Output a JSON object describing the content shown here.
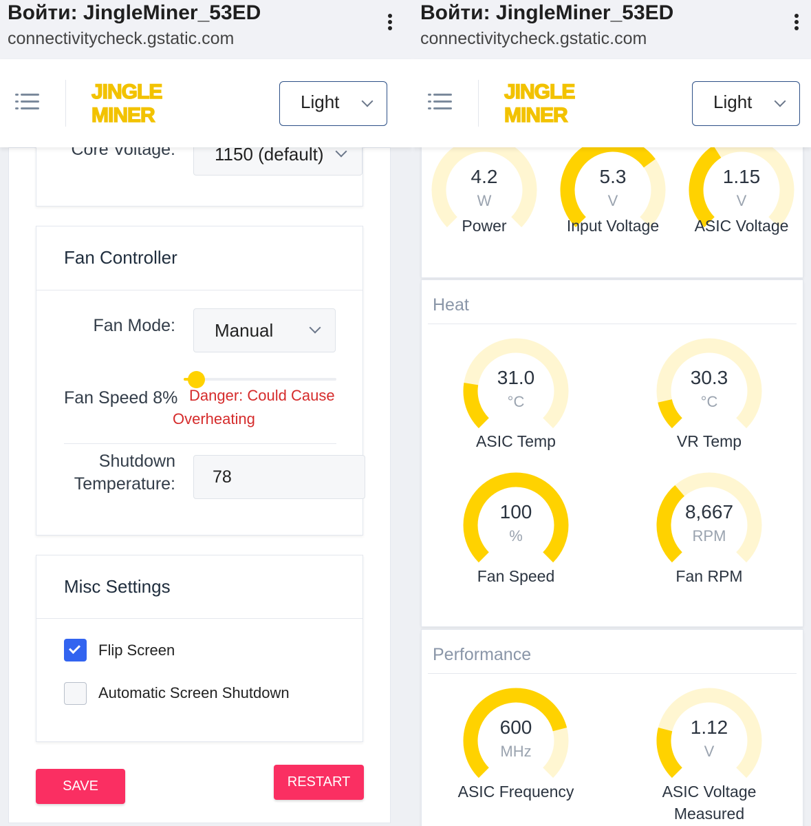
{
  "browser": {
    "title": "Войти: JingleMiner_53ED",
    "url": "connectivitycheck.gstatic.com"
  },
  "nav": {
    "logo_line1": "JINGLE",
    "logo_line2": "MINER",
    "theme_value": "Light"
  },
  "settings": {
    "core_voltage_label": "Core Voltage:",
    "core_voltage_value": "1150 (default)",
    "fan_card_title": "Fan Controller",
    "fan_mode_label": "Fan Mode:",
    "fan_mode_value": "Manual",
    "fan_speed_label": "Fan Speed 8%",
    "fan_speed_percent": 8,
    "danger_line1": "Danger: Could Cause",
    "danger_line2": "Overheating",
    "shutdown_label_line1": "Shutdown",
    "shutdown_label_line2": "Temperature:",
    "shutdown_value": "78",
    "misc_card_title": "Misc Settings",
    "flip_screen_label": "Flip Screen",
    "flip_screen_checked": true,
    "auto_shutdown_label": "Automatic Screen Shutdown",
    "auto_shutdown_checked": false,
    "save_label": "SAVE",
    "restart_label": "RESTART"
  },
  "dashboard": {
    "power": {
      "gauges": [
        {
          "value": "4.2",
          "unit": "W",
          "label": "Power",
          "fill": 0.0
        },
        {
          "value": "5.3",
          "unit": "V",
          "label": "Input Voltage",
          "fill": 0.7
        },
        {
          "value": "1.15",
          "unit": "V",
          "label": "ASIC Voltage",
          "fill": 0.38
        }
      ]
    },
    "heat": {
      "title": "Heat",
      "gauges": [
        {
          "value": "31.0",
          "unit": "°C",
          "label": "ASIC Temp",
          "fill": 0.2
        },
        {
          "value": "30.3",
          "unit": "°C",
          "label": "VR Temp",
          "fill": 0.12
        },
        {
          "value": "100",
          "unit": "%",
          "label": "Fan Speed",
          "fill": 1.0
        },
        {
          "value": "8,667",
          "unit": "RPM",
          "label": "Fan RPM",
          "fill": 0.35
        }
      ]
    },
    "performance": {
      "title": "Performance",
      "gauges": [
        {
          "value": "600",
          "unit": "MHz",
          "label": "ASIC Frequency",
          "fill": 0.78
        },
        {
          "value": "1.12",
          "unit": "V",
          "label": "ASIC Voltage Measured",
          "label_line1": "ASIC Voltage",
          "label_line2": "Measured",
          "fill": 0.22
        }
      ]
    }
  },
  "colors": {
    "gauge_fill": "#ffd200",
    "gauge_track": "#fff6d1",
    "accent_blue": "#3264f0",
    "button_pink": "#fa2f62",
    "danger_red": "#d52b2b"
  }
}
